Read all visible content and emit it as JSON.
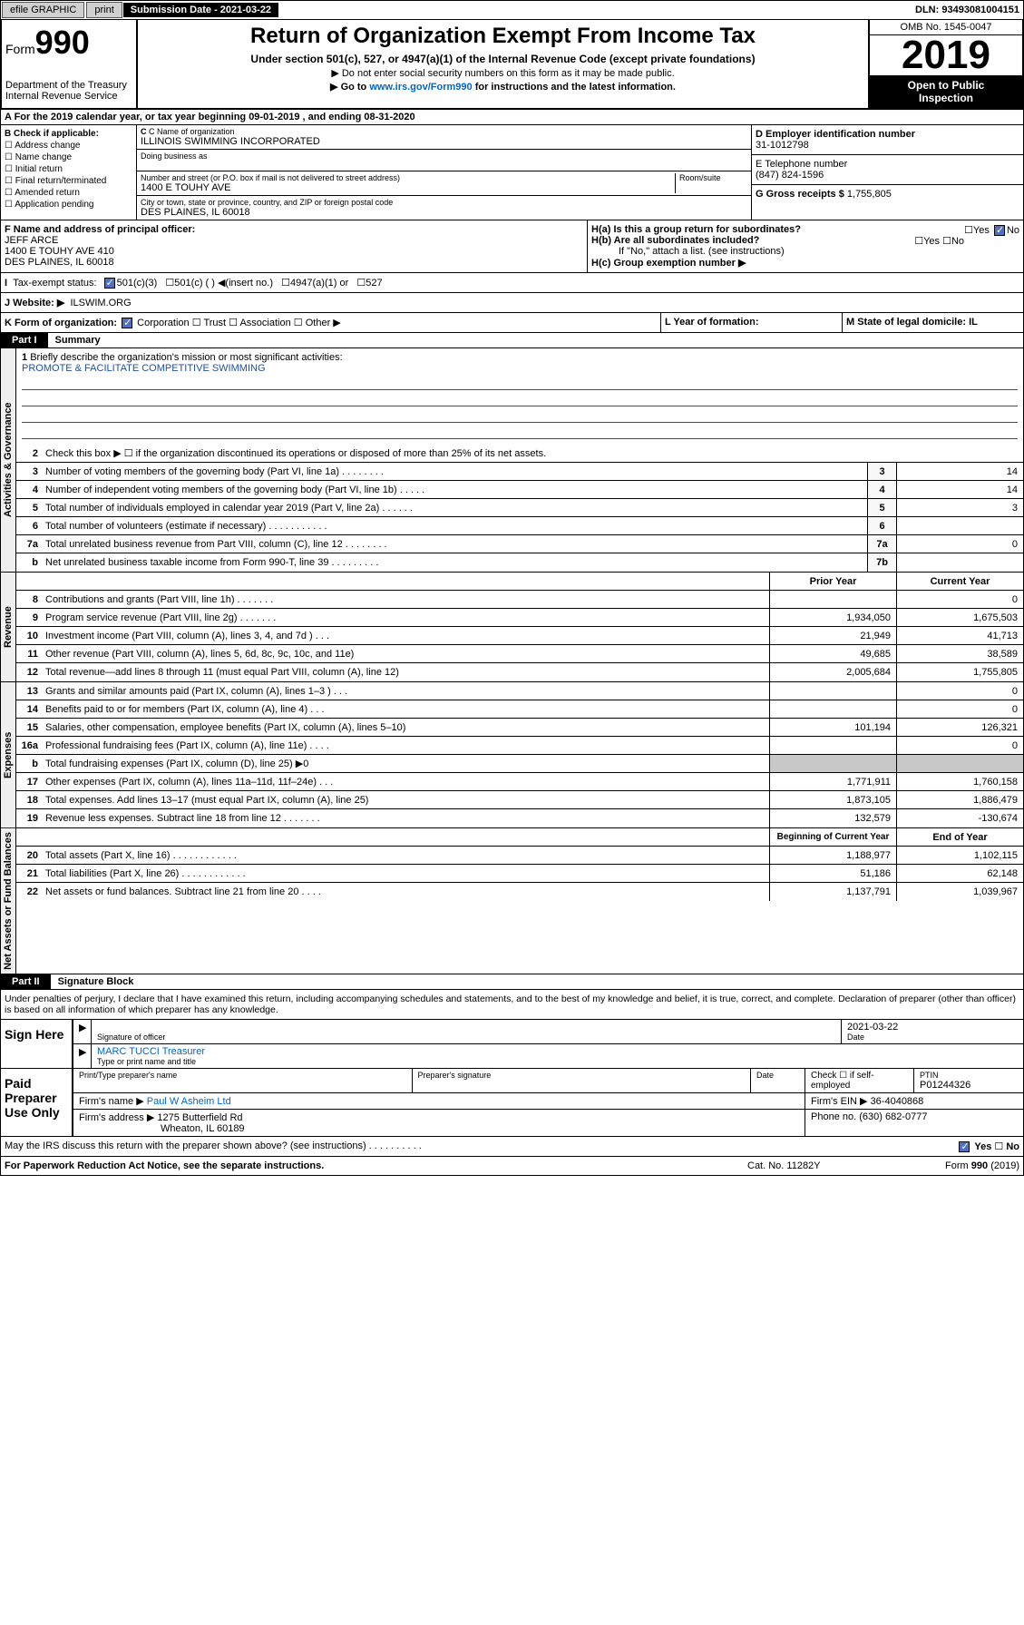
{
  "topbar": {
    "efile": "efile GRAPHIC",
    "print": "print",
    "submission": "Submission Date - 2021-03-22",
    "dln": "DLN: 93493081004151"
  },
  "header": {
    "form": "Form",
    "num": "990",
    "dept": "Department of the Treasury",
    "irs": "Internal Revenue Service",
    "title": "Return of Organization Exempt From Income Tax",
    "subtitle": "Under section 501(c), 527, or 4947(a)(1) of the Internal Revenue Code (except private foundations)",
    "warn": "▶ Do not enter social security numbers on this form as it may be made public.",
    "goto": "▶ Go to ",
    "link": "www.irs.gov/Form990",
    "goto2": " for instructions and the latest information.",
    "omb": "OMB No. 1545-0047",
    "year": "2019",
    "inspect1": "Open to Public",
    "inspect2": "Inspection"
  },
  "rowA": "A For the 2019 calendar year, or tax year beginning 09-01-2019    , and ending 08-31-2020",
  "boxB": {
    "hdr": "B Check if applicable:",
    "opts": [
      "Address change",
      "Name change",
      "Initial return",
      "Final return/terminated",
      "Amended return",
      "Application pending"
    ]
  },
  "boxC": {
    "nameLbl": "C Name of organization",
    "name": "ILLINOIS SWIMMING INCORPORATED",
    "dbaLbl": "Doing business as",
    "addrLbl": "Number and street (or P.O. box if mail is not delivered to street address)",
    "roomLbl": "Room/suite",
    "addr": "1400 E TOUHY AVE",
    "cityLbl": "City or town, state or province, country, and ZIP or foreign postal code",
    "city": "DES PLAINES, IL  60018"
  },
  "boxD": {
    "lbl": "D Employer identification number",
    "val": "31-1012798"
  },
  "boxE": {
    "lbl": "E Telephone number",
    "val": "(847) 824-1596"
  },
  "boxG": {
    "lbl": "G Gross receipts $",
    "val": "1,755,805"
  },
  "boxF": {
    "lbl": "F Name and address of principal officer:",
    "name": "JEFF ARCE",
    "addr1": "1400 E TOUHY AVE 410",
    "addr2": "DES PLAINES, IL  60018"
  },
  "boxH": {
    "a": "H(a)  Is this a group return for subordinates?",
    "b": "H(b)  Are all subordinates included?",
    "bnote": "If \"No,\" attach a list. (see instructions)",
    "c": "H(c)  Group exemption number ▶",
    "yes": "Yes",
    "no": "No"
  },
  "rowI": {
    "lbl": "Tax-exempt status:",
    "opt1": "501(c)(3)",
    "opt2": "501(c) (  ) ◀(insert no.)",
    "opt3": "4947(a)(1) or",
    "opt4": "527"
  },
  "rowJ": {
    "lbl": "J   Website: ▶",
    "val": "ILSWIM.ORG"
  },
  "rowK": {
    "lbl": "K Form of organization:",
    "corp": "Corporation",
    "trust": "Trust",
    "assoc": "Association",
    "other": "Other ▶",
    "year": "L Year of formation:",
    "state": "M State of legal domicile: IL"
  },
  "part1": {
    "tag": "Part I",
    "title": "Summary"
  },
  "summary": {
    "q1": "Briefly describe the organization's mission or most significant activities:",
    "mission": "PROMOTE & FACILITATE COMPETITIVE SWIMMING",
    "q2": "Check this box ▶ ☐  if the organization discontinued its operations or disposed of more than 25% of its net assets.",
    "rows": [
      {
        "n": "3",
        "t": "Number of voting members of the governing body (Part VI, line 1a)   .    .    .    .    .    .    .    .",
        "b": "3",
        "v": "14"
      },
      {
        "n": "4",
        "t": "Number of independent voting members of the governing body (Part VI, line 1b)   .    .    .    .    .",
        "b": "4",
        "v": "14"
      },
      {
        "n": "5",
        "t": "Total number of individuals employed in calendar year 2019 (Part V, line 2a)   .    .    .    .    .    .",
        "b": "5",
        "v": "3"
      },
      {
        "n": "6",
        "t": "Total number of volunteers (estimate if necessary)   .    .    .    .    .    .    .    .    .    .    .",
        "b": "6",
        "v": ""
      },
      {
        "n": "7a",
        "t": "Total unrelated business revenue from Part VIII, column (C), line 12   .    .    .    .    .    .    .    .",
        "b": "7a",
        "v": "0"
      },
      {
        "n": "b",
        "t": "Net unrelated business taxable income from Form 990-T, line 39   .    .    .    .    .    .    .    .    .",
        "b": "7b",
        "v": ""
      }
    ],
    "priorHdr": "Prior Year",
    "currHdr": "Current Year",
    "revRows": [
      {
        "n": "8",
        "t": "Contributions and grants (Part VIII, line 1h)   .    .    .    .    .    .    .",
        "p": "",
        "c": "0"
      },
      {
        "n": "9",
        "t": "Program service revenue (Part VIII, line 2g)   .    .    .    .    .    .    .",
        "p": "1,934,050",
        "c": "1,675,503"
      },
      {
        "n": "10",
        "t": "Investment income (Part VIII, column (A), lines 3, 4, and 7d )   .    .    .",
        "p": "21,949",
        "c": "41,713"
      },
      {
        "n": "11",
        "t": "Other revenue (Part VIII, column (A), lines 5, 6d, 8c, 9c, 10c, and 11e)",
        "p": "49,685",
        "c": "38,589"
      },
      {
        "n": "12",
        "t": "Total revenue—add lines 8 through 11 (must equal Part VIII, column (A), line 12)",
        "p": "2,005,684",
        "c": "1,755,805"
      }
    ],
    "expRows": [
      {
        "n": "13",
        "t": "Grants and similar amounts paid (Part IX, column (A), lines 1–3 )   .    .    .",
        "p": "",
        "c": "0"
      },
      {
        "n": "14",
        "t": "Benefits paid to or for members (Part IX, column (A), line 4)   .    .    .",
        "p": "",
        "c": "0"
      },
      {
        "n": "15",
        "t": "Salaries, other compensation, employee benefits (Part IX, column (A), lines 5–10)",
        "p": "101,194",
        "c": "126,321"
      },
      {
        "n": "16a",
        "t": "Professional fundraising fees (Part IX, column (A), line 11e)   .    .    .    .",
        "p": "",
        "c": "0"
      },
      {
        "n": "b",
        "t": "Total fundraising expenses (Part IX, column (D), line 25) ▶0",
        "p": "shaded",
        "c": "shaded"
      },
      {
        "n": "17",
        "t": "Other expenses (Part IX, column (A), lines 11a–11d, 11f–24e)   .    .    .",
        "p": "1,771,911",
        "c": "1,760,158"
      },
      {
        "n": "18",
        "t": "Total expenses. Add lines 13–17 (must equal Part IX, column (A), line 25)",
        "p": "1,873,105",
        "c": "1,886,479"
      },
      {
        "n": "19",
        "t": "Revenue less expenses. Subtract line 18 from line 12   .    .    .    .    .    .    .",
        "p": "132,579",
        "c": "-130,674"
      }
    ],
    "begHdr": "Beginning of Current Year",
    "endHdr": "End of Year",
    "netRows": [
      {
        "n": "20",
        "t": "Total assets (Part X, line 16)   .    .    .    .    .    .    .    .    .    .    .    .",
        "p": "1,188,977",
        "c": "1,102,115"
      },
      {
        "n": "21",
        "t": "Total liabilities (Part X, line 26)   .    .    .    .    .    .    .    .    .    .    .    .",
        "p": "51,186",
        "c": "62,148"
      },
      {
        "n": "22",
        "t": "Net assets or fund balances. Subtract line 21 from line 20   .    .    .    .",
        "p": "1,137,791",
        "c": "1,039,967"
      }
    ],
    "tabGov": "Activities & Governance",
    "tabRev": "Revenue",
    "tabExp": "Expenses",
    "tabNet": "Net Assets or Fund Balances"
  },
  "part2": {
    "tag": "Part II",
    "title": "Signature Block"
  },
  "sig": {
    "penalty": "Under penalties of perjury, I declare that I have examined this return, including accompanying schedules and statements, and to the best of my knowledge and belief, it is true, correct, and complete. Declaration of preparer (other than officer) is based on all information of which preparer has any knowledge.",
    "signHere": "Sign Here",
    "sigOfficer": "Signature of officer",
    "date": "Date",
    "dateVal": "2021-03-22",
    "nameTitle": "MARC TUCCI Treasurer",
    "typeLbl": "Type or print name and title",
    "paidHdr": "Paid Preparer Use Only",
    "prepName": "Print/Type preparer's name",
    "prepSig": "Preparer's signature",
    "checkSelf": "Check ☐ if self-employed",
    "ptin": "PTIN",
    "ptinVal": "P01244326",
    "firmName": "Firm's name    ▶",
    "firmNameVal": "Paul W Asheim Ltd",
    "firmEin": "Firm's EIN ▶",
    "firmEinVal": "36-4040868",
    "firmAddr": "Firm's address ▶",
    "firmAddrVal": "1275 Butterfield Rd",
    "firmCity": "Wheaton, IL  60189",
    "phone": "Phone no.",
    "phoneVal": "(630) 682-0777",
    "discuss": "May the IRS discuss this return with the preparer shown above? (see instructions)   .    .    .    .    .    .    .    .    .    .",
    "yes": "Yes",
    "no": "No"
  },
  "footer": {
    "left": "For Paperwork Reduction Act Notice, see the separate instructions.",
    "mid": "Cat. No. 11282Y",
    "right": "Form 990 (2019)"
  }
}
